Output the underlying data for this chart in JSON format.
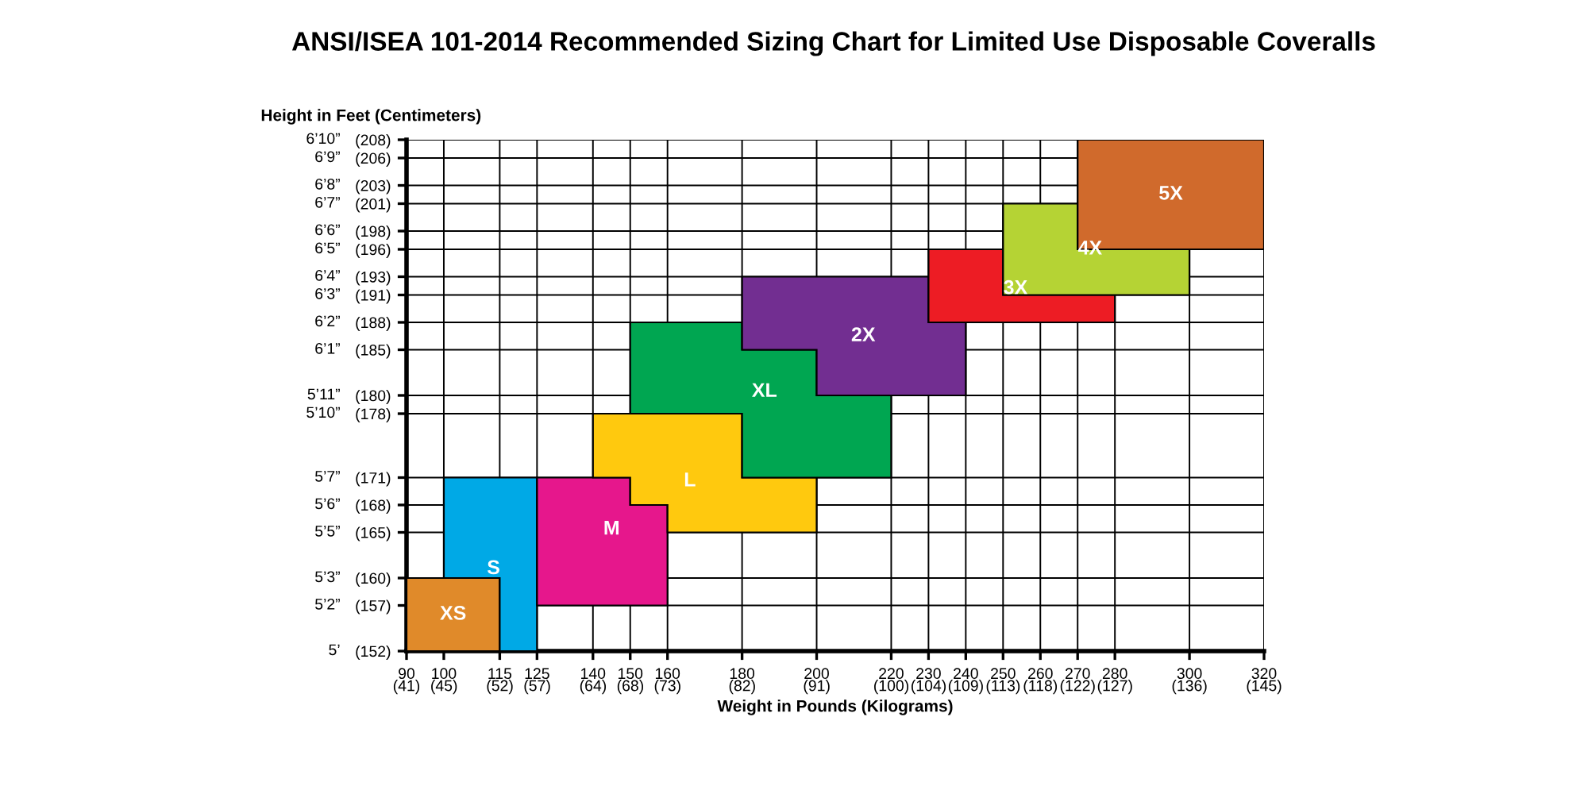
{
  "chart_data": {
    "type": "area",
    "title": "ANSI/ISEA 101-2014 Recommended Sizing Chart for Limited Use Disposable Coveralls",
    "xlabel": "Weight in Pounds (Kilograms)",
    "ylabel": "Height in Feet (Centimeters)",
    "xlim": [
      90,
      320
    ],
    "ylim": [
      152,
      208
    ],
    "xticks": [
      90,
      100,
      115,
      125,
      140,
      150,
      160,
      180,
      200,
      220,
      230,
      240,
      250,
      260,
      270,
      280,
      300,
      320
    ],
    "x2lim": [
      40.8,
      145.15
    ],
    "x2ticks": [
      {
        "value": 40.8,
        "label": "(41)"
      },
      {
        "value": 45.36,
        "label": "(45)"
      },
      {
        "value": 52.16,
        "label": "(52)"
      },
      {
        "value": 56.7,
        "label": "(57)"
      },
      {
        "value": 63.5,
        "label": "(64)"
      },
      {
        "value": 68.04,
        "label": "(68)"
      },
      {
        "value": 72.57,
        "label": "(73)"
      },
      {
        "value": 81.65,
        "label": "(82)"
      },
      {
        "value": 90.72,
        "label": "(91)"
      },
      {
        "value": 99.79,
        "label": "(100)"
      },
      {
        "value": 104.33,
        "label": "(104)"
      },
      {
        "value": 108.86,
        "label": "(109)"
      },
      {
        "value": 113.4,
        "label": "(113)"
      },
      {
        "value": 117.93,
        "label": "(118)"
      },
      {
        "value": 122.47,
        "label": "(122)"
      },
      {
        "value": 127.01,
        "label": "(127)"
      },
      {
        "value": 136.08,
        "label": "(136)"
      },
      {
        "value": 145.15,
        "label": "(145)"
      }
    ],
    "yticks": [
      {
        "value": 152,
        "label": "(152)"
      },
      {
        "value": 157,
        "label": "(157)"
      },
      {
        "value": 160,
        "label": "(160)"
      },
      {
        "value": 165,
        "label": "(165)"
      },
      {
        "value": 168,
        "label": "(168)"
      },
      {
        "value": 171,
        "label": "(171)"
      },
      {
        "value": 178,
        "label": "(178)"
      },
      {
        "value": 180,
        "label": "(180)"
      },
      {
        "value": 185,
        "label": "(185)"
      },
      {
        "value": 188,
        "label": "(188)"
      },
      {
        "value": 191,
        "label": "(191)"
      },
      {
        "value": 193,
        "label": "(193)"
      },
      {
        "value": 196,
        "label": "(196)"
      },
      {
        "value": 198,
        "label": "(198)"
      },
      {
        "value": 201,
        "label": "(201)"
      },
      {
        "value": 203,
        "label": "(203)"
      },
      {
        "value": 206,
        "label": "(206)"
      },
      {
        "value": 208,
        "label": "(208)"
      }
    ],
    "annotations": [
      "5’",
      "5’2”",
      "5’3”",
      "5’5”",
      "5’6”",
      "5’7”",
      "5’10”",
      "5’11”",
      "6’1”",
      "6’2”",
      "6’3”",
      "6’4”",
      "6’5”",
      "6’6”",
      "6’7”",
      "6’8”",
      "6’9”",
      "6’10”"
    ],
    "grid": true,
    "series": [
      {
        "name": "XS",
        "type": "area",
        "color": "#e08a2a",
        "x": [
          90,
          90,
          115,
          115
        ],
        "values": [
          152,
          160,
          160,
          152
        ]
      },
      {
        "name": "S",
        "type": "area",
        "color": "#00a9e6",
        "x": [
          100,
          100,
          125,
          125,
          115,
          115
        ],
        "values": [
          160,
          171,
          171,
          152,
          152,
          160
        ]
      },
      {
        "name": "M",
        "type": "area",
        "color": "#e6178c",
        "x": [
          125,
          125,
          150,
          150,
          160,
          160
        ],
        "values": [
          157,
          171,
          171,
          168,
          168,
          157
        ]
      },
      {
        "name": "L",
        "type": "area",
        "color": "#ffc90e",
        "x": [
          140,
          180,
          180,
          200,
          200,
          160,
          160,
          150,
          150,
          140
        ],
        "values": [
          178,
          178,
          171,
          171,
          165,
          165,
          168,
          168,
          171,
          171
        ]
      },
      {
        "name": "XL",
        "type": "area",
        "color": "#00a651",
        "x": [
          150,
          150,
          180,
          180,
          200,
          200,
          220,
          220,
          180,
          180
        ],
        "values": [
          178,
          188,
          188,
          185,
          185,
          180,
          180,
          171,
          171,
          178
        ]
      },
      {
        "name": "2X",
        "type": "area",
        "color": "#722e91",
        "x": [
          180,
          180,
          230,
          230,
          240,
          240,
          200,
          200
        ],
        "values": [
          185,
          193,
          193,
          188,
          188,
          180,
          180,
          185
        ]
      },
      {
        "name": "3X",
        "type": "area",
        "color": "#ed1c24",
        "x": [
          230,
          230,
          250,
          250,
          280,
          280
        ],
        "values": [
          188,
          196,
          196,
          191,
          191,
          188
        ]
      },
      {
        "name": "4X",
        "type": "area",
        "color": "#b5d334",
        "x": [
          250,
          250,
          270,
          270,
          300,
          300
        ],
        "values": [
          191,
          201,
          201,
          196,
          196,
          191
        ]
      },
      {
        "name": "5X",
        "type": "area",
        "color": "#d06a2c",
        "x": [
          270,
          270,
          320,
          320
        ],
        "values": [
          196,
          208,
          208,
          196
        ]
      }
    ]
  }
}
